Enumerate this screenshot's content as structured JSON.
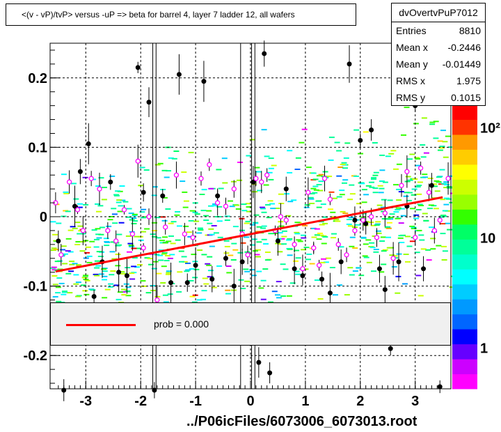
{
  "title": "<(v - vP)/tvP> versus  -uP => beta for barrel 4, layer 7 ladder 12, all wafers",
  "stats": {
    "name": "dvOvertvPuP7012",
    "rows": [
      {
        "label": "Entries",
        "value": "8810"
      },
      {
        "label": "Mean x",
        "value": "-0.2446"
      },
      {
        "label": "Mean y",
        "value": "-0.01449"
      },
      {
        "label": "RMS x",
        "value": "1.975"
      },
      {
        "label": "RMS y",
        "value": "0.1015"
      }
    ]
  },
  "legend": {
    "entry": "prob = 0.000",
    "color": "#ff0000"
  },
  "xaxis_title": "../P06icFiles/6073006_6073013.root",
  "chart_data": {
    "type": "heatmap",
    "xlim": [
      -3.65,
      3.65
    ],
    "ylim": [
      -0.248,
      0.25
    ],
    "x_ticks": [
      -3,
      -2,
      -1,
      0,
      1,
      2,
      3
    ],
    "y_ticks": [
      -0.2,
      -0.1,
      0,
      0.1,
      0.2
    ],
    "x_tick_labels": [
      "-3",
      "-2",
      "-1",
      "0",
      "1",
      "2",
      "3"
    ],
    "y_tick_labels": [
      "-0.2",
      "-0.1",
      "0",
      "0.1",
      "0.2"
    ],
    "grid": true,
    "log_z": true,
    "palette": [
      "#ff00ff",
      "#cc00ff",
      "#6600ff",
      "#0000ff",
      "#0066ff",
      "#0099ff",
      "#00ccff",
      "#00ffff",
      "#00ffcc",
      "#00ff99",
      "#00ff66",
      "#33ff00",
      "#99ff00",
      "#ccff00",
      "#ffff00",
      "#ffcc00",
      "#ff9900",
      "#ff3300",
      "#ff0000"
    ],
    "zaxis_labels": [
      "1",
      "10",
      "10²"
    ],
    "zaxis_values": [
      1,
      10,
      100
    ],
    "fit_line": {
      "x": [
        -3.55,
        3.5
      ],
      "y": [
        -0.079,
        0.028
      ],
      "color": "#ff0000"
    },
    "vertical_lines_x": [
      -1.78,
      -1.72,
      -0.18,
      0.02,
      0.08
    ],
    "black_points": [
      [
        -3.5,
        -0.035
      ],
      [
        -3.4,
        -0.25
      ],
      [
        -3.2,
        0.015
      ],
      [
        -3.1,
        0.065
      ],
      [
        -2.95,
        0.105
      ],
      [
        -2.85,
        -0.115
      ],
      [
        -2.7,
        -0.065
      ],
      [
        -2.55,
        0.05
      ],
      [
        -2.4,
        -0.08
      ],
      [
        -2.25,
        -0.085
      ],
      [
        -2.05,
        0.215
      ],
      [
        -1.95,
        0.035
      ],
      [
        -1.85,
        0.165
      ],
      [
        -1.75,
        -0.25
      ],
      [
        -1.6,
        0.03
      ],
      [
        -1.45,
        -0.095
      ],
      [
        -1.3,
        0.205
      ],
      [
        -1.15,
        -0.095
      ],
      [
        -1.0,
        -0.07
      ],
      [
        -0.85,
        0.195
      ],
      [
        -0.7,
        -0.09
      ],
      [
        -0.6,
        0.03
      ],
      [
        -0.45,
        -0.06
      ],
      [
        -0.3,
        -0.1
      ],
      [
        -0.15,
        -0.065
      ],
      [
        0.05,
        0.05
      ],
      [
        0.15,
        -0.21
      ],
      [
        0.25,
        0.235
      ],
      [
        0.35,
        -0.225
      ],
      [
        0.5,
        -0.035
      ],
      [
        0.65,
        0.04
      ],
      [
        0.8,
        -0.075
      ],
      [
        0.95,
        -0.085
      ],
      [
        1.15,
        -0.045
      ],
      [
        1.3,
        -0.09
      ],
      [
        1.45,
        -0.11
      ],
      [
        1.65,
        -0.065
      ],
      [
        1.8,
        0.22
      ],
      [
        1.9,
        -0.005
      ],
      [
        2.0,
        0.11
      ],
      [
        2.1,
        -0.01
      ],
      [
        2.2,
        0.125
      ],
      [
        2.35,
        -0.075
      ],
      [
        2.45,
        -0.105
      ],
      [
        2.55,
        -0.19
      ],
      [
        2.7,
        -0.065
      ],
      [
        2.85,
        0.015
      ],
      [
        3.0,
        0.16
      ],
      [
        3.15,
        -0.075
      ],
      [
        3.3,
        0.045
      ],
      [
        3.45,
        -0.245
      ]
    ],
    "profile_points": [
      [
        -3.55,
        0.02
      ],
      [
        -3.45,
        -0.055
      ],
      [
        -3.3,
        0.05
      ],
      [
        -3.15,
        0.01
      ],
      [
        -3.05,
        -0.02
      ],
      [
        -2.9,
        0.055
      ],
      [
        -2.75,
        0.04
      ],
      [
        -2.6,
        -0.02
      ],
      [
        -2.45,
        -0.035
      ],
      [
        -2.3,
        0.01
      ],
      [
        -2.15,
        -0.025
      ],
      [
        -2.05,
        0.08
      ],
      [
        -1.95,
        -0.045
      ],
      [
        -1.85,
        0.0
      ],
      [
        -1.7,
        -0.12
      ],
      [
        -1.55,
        -0.015
      ],
      [
        -1.35,
        0.06
      ],
      [
        -1.2,
        -0.025
      ],
      [
        -1.05,
        -0.03
      ],
      [
        -0.9,
        0.055
      ],
      [
        -0.75,
        0.075
      ],
      [
        -0.6,
        0.02
      ],
      [
        -0.45,
        0.015
      ],
      [
        -0.3,
        0.04
      ],
      [
        -0.15,
        -0.025
      ],
      [
        -0.05,
        -0.055
      ],
      [
        0.1,
        0.055
      ],
      [
        0.2,
        0.05
      ],
      [
        0.3,
        0.06
      ],
      [
        0.45,
        -0.02
      ],
      [
        0.55,
        0.0
      ],
      [
        0.65,
        -0.005
      ],
      [
        0.8,
        -0.04
      ],
      [
        0.95,
        -0.075
      ],
      [
        1.05,
        0.035
      ],
      [
        1.15,
        -0.045
      ],
      [
        1.25,
        -0.07
      ],
      [
        1.35,
        0.055
      ],
      [
        1.45,
        0.025
      ],
      [
        1.6,
        -0.04
      ],
      [
        1.75,
        -0.055
      ],
      [
        1.9,
        -0.02
      ],
      [
        2.05,
        -0.005
      ],
      [
        2.2,
        0.0
      ],
      [
        2.3,
        -0.03
      ],
      [
        2.45,
        0.005
      ],
      [
        2.6,
        -0.06
      ],
      [
        2.75,
        0.045
      ],
      [
        2.85,
        0.065
      ],
      [
        3.0,
        -0.03
      ],
      [
        3.1,
        0.07
      ],
      [
        3.25,
        0.035
      ],
      [
        3.35,
        -0.02
      ],
      [
        3.45,
        -0.005
      ],
      [
        3.6,
        0.055
      ]
    ],
    "noise_points_count": 900
  }
}
